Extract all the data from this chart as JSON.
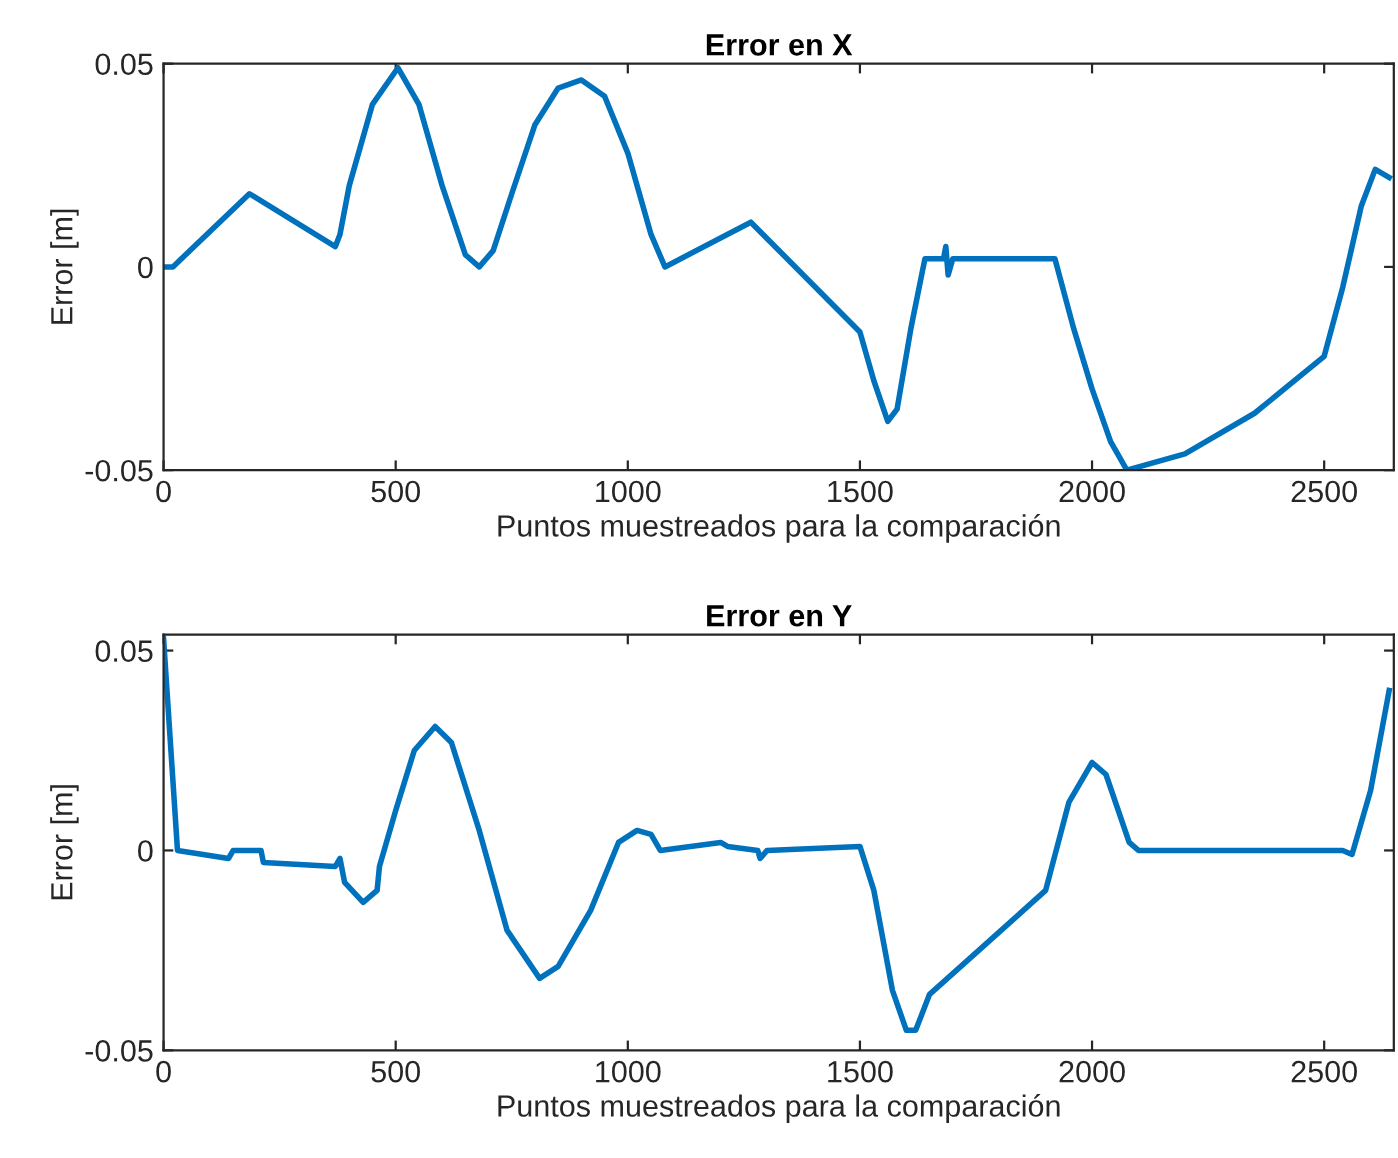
{
  "chart_data": [
    {
      "type": "line",
      "title": "Error en X",
      "xlabel": "Puntos muestreados para la comparación",
      "ylabel": "Error [m]",
      "xlim": [
        0,
        2650
      ],
      "xticks": [
        0,
        500,
        1000,
        1500,
        2000,
        2500
      ],
      "ylim": [
        -0.05,
        0.05
      ],
      "yticks": [
        -0.05,
        0,
        0.05
      ],
      "grid": false,
      "legend": false,
      "x": [
        0,
        20,
        185,
        370,
        380,
        400,
        450,
        505,
        550,
        600,
        650,
        680,
        710,
        750,
        800,
        850,
        900,
        950,
        1000,
        1050,
        1080,
        1265,
        1500,
        1530,
        1560,
        1580,
        1610,
        1640,
        1680,
        1685,
        1690,
        1700,
        1920,
        1960,
        2000,
        2040,
        2075,
        2200,
        2350,
        2500,
        2540,
        2580,
        2610,
        2640
      ],
      "series": [
        {
          "color": "#0072bd",
          "values": [
            0,
            0,
            0.018,
            0.005,
            0.008,
            0.02,
            0.04,
            0.049,
            0.04,
            0.02,
            0.003,
            0,
            0.004,
            0.018,
            0.035,
            0.044,
            0.046,
            0.042,
            0.028,
            0.008,
            0,
            0.011,
            -0.016,
            -0.028,
            -0.038,
            -0.035,
            -0.015,
            0.002,
            0.002,
            0.005,
            -0.002,
            0.002,
            0.002,
            -0.015,
            -0.03,
            -0.043,
            -0.05,
            -0.046,
            -0.036,
            -0.022,
            -0.005,
            0.015,
            0.024,
            0.022
          ]
        }
      ]
    },
    {
      "type": "line",
      "title": "Error en Y",
      "xlabel": "Puntos muestreados para la comparación",
      "ylabel": "Error [m]",
      "xlim": [
        0,
        2650
      ],
      "xticks": [
        0,
        500,
        1000,
        1500,
        2000,
        2500
      ],
      "ylim": [
        -0.05,
        0.054
      ],
      "yticks": [
        -0.05,
        0,
        0.05
      ],
      "grid": false,
      "legend": false,
      "x": [
        0,
        30,
        140,
        150,
        210,
        215,
        370,
        380,
        390,
        430,
        460,
        465,
        500,
        540,
        585,
        620,
        680,
        740,
        810,
        850,
        920,
        980,
        1020,
        1050,
        1070,
        1200,
        1215,
        1280,
        1285,
        1300,
        1500,
        1530,
        1570,
        1600,
        1620,
        1650,
        1900,
        1950,
        2000,
        2030,
        2080,
        2100,
        2540,
        2560,
        2600,
        2640
      ],
      "series": [
        {
          "color": "#0072bd",
          "values": [
            0.053,
            0,
            -0.002,
            0,
            0,
            -0.003,
            -0.004,
            -0.002,
            -0.008,
            -0.013,
            -0.01,
            -0.004,
            0.01,
            0.025,
            0.031,
            0.027,
            0.005,
            -0.02,
            -0.032,
            -0.029,
            -0.015,
            0.002,
            0.005,
            0.004,
            0,
            0.002,
            0.001,
            0,
            -0.002,
            0,
            0.001,
            -0.01,
            -0.035,
            -0.045,
            -0.045,
            -0.036,
            -0.01,
            0.012,
            0.022,
            0.019,
            0.002,
            0,
            0,
            -0.001,
            0.015,
            0.04
          ]
        }
      ]
    }
  ]
}
